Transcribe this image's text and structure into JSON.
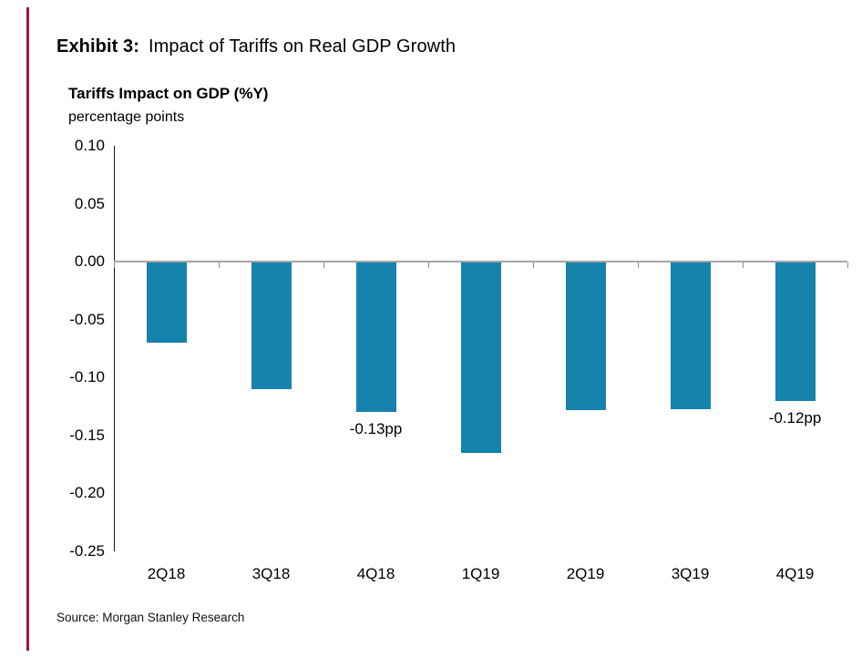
{
  "page": {
    "background": "#ffffff",
    "accent_color": "#9b1b30"
  },
  "header": {
    "exhibit_label": "Exhibit 3:",
    "title": "Impact of Tariffs on Real GDP Growth"
  },
  "chart": {
    "title": "Tariffs Impact on GDP (%Y)",
    "subtitle": "percentage points"
  },
  "source": "Source: Morgan Stanley Research",
  "chart_data": {
    "type": "bar",
    "title": "Tariffs Impact on GDP (%Y)",
    "ylabel": "percentage points",
    "categories": [
      "2Q18",
      "3Q18",
      "4Q18",
      "1Q19",
      "2Q19",
      "3Q19",
      "4Q19"
    ],
    "values": [
      -0.07,
      -0.11,
      -0.13,
      -0.165,
      -0.128,
      -0.127,
      -0.12
    ],
    "ylim": [
      -0.25,
      0.1
    ],
    "ytick_step": 0.05,
    "grid": false,
    "legend": false,
    "bar_color": "#1583ac",
    "axis_color": "#1a1a1a",
    "zero_line_color": "#a6a6a6",
    "tick_color": "#8c8c8c",
    "annotations": [
      {
        "category": "4Q18",
        "text": "-0.13pp"
      },
      {
        "category": "4Q19",
        "text": "-0.12pp"
      }
    ]
  }
}
